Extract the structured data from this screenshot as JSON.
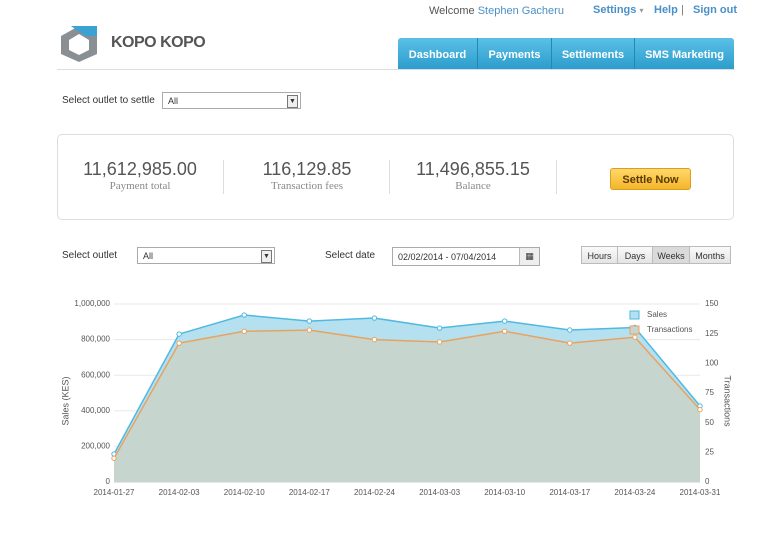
{
  "header": {
    "brand": "KOPO KOPO",
    "welcome": "Welcome",
    "user": "Stephen Gacheru",
    "settings": "Settings",
    "help": "Help",
    "separator": "|",
    "sign_out": "Sign out"
  },
  "tabs": [
    "Dashboard",
    "Payments",
    "Settlements",
    "SMS Marketing"
  ],
  "settle_outlet": {
    "label": "Select outlet to settle",
    "value": "All"
  },
  "stats": [
    {
      "value": "11,612,985.00",
      "label": "Payment total"
    },
    {
      "value": "116,129.85",
      "label": "Transaction fees"
    },
    {
      "value": "11,496,855.15",
      "label": "Balance"
    }
  ],
  "settle_button": "Settle Now",
  "filters": {
    "outlet_label": "Select outlet",
    "outlet_value": "All",
    "date_label": "Select date",
    "date_value": "02/02/2014 - 07/04/2014",
    "periods": [
      "Hours",
      "Days",
      "Weeks",
      "Months"
    ],
    "active_period": "Weeks"
  },
  "chart_data": {
    "type": "area",
    "ylabel": "Sales (KES)",
    "y2label": "Transactions",
    "categories": [
      "2014-01-27",
      "2014-02-03",
      "2014-02-10",
      "2014-02-17",
      "2014-02-24",
      "2014-03-03",
      "2014-03-10",
      "2014-03-17",
      "2014-03-24",
      "2014-03-31"
    ],
    "series": [
      {
        "name": "Sales",
        "color": "#4fb9e1",
        "area_color": "#b5e0f0",
        "values": [
          157000,
          831000,
          938000,
          904000,
          921000,
          865000,
          904000,
          854000,
          868000,
          427000
        ]
      },
      {
        "name": "Transactions",
        "color": "#e9a25e",
        "area_color": "#c6d6cf",
        "axis": "y2",
        "values": [
          20,
          117,
          127,
          128,
          120,
          118,
          127,
          117,
          122,
          61
        ]
      }
    ],
    "ylim": [
      0,
      1000000
    ],
    "yticks": [
      0,
      {
        "value": 200000,
        "label": "200,000"
      },
      {
        "value": 400000,
        "label": "400,000"
      },
      {
        "value": 600000,
        "label": "600,000"
      },
      {
        "value": 800000,
        "label": "800,000"
      },
      {
        "value": 1000000,
        "label": "1,000,000"
      }
    ],
    "y2lim": [
      0,
      150
    ],
    "y2ticks": [
      0,
      25,
      50,
      75,
      100,
      125,
      150
    ],
    "grid": true,
    "legend": "top-right"
  }
}
